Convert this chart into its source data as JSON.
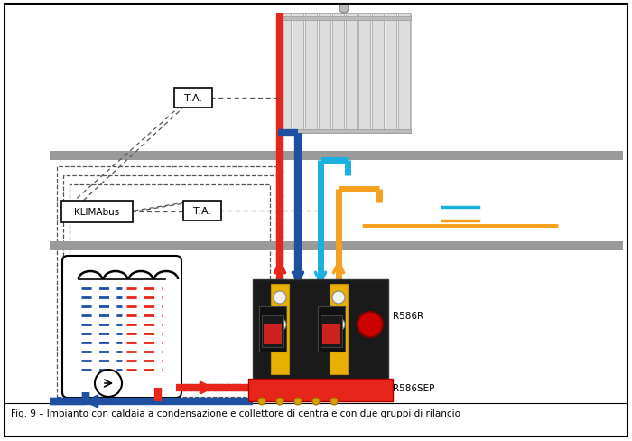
{
  "title": "Fig. 9 – Impianto con caldaia a condensazione e collettore di centrale con due gruppi di rilancio",
  "bg_color": "#ffffff",
  "border_color": "#000000",
  "label_TA": "T.A.",
  "label_KLIMAbus": "KLIMAbus",
  "label_R586R": "R586R",
  "label_R586SEP": "R586SEP",
  "floor_color": "#9a9a9a",
  "red_pipe": "#e8251a",
  "blue_pipe": "#1e4fa0",
  "orange_pipe": "#f5a020",
  "cyan_pipe": "#1ab0e0",
  "dark_box": "#222222",
  "yellow_valve": "#e8b000",
  "radiator_color": "#cccccc",
  "pipe_lw": 6,
  "pipe_lw2": 5
}
